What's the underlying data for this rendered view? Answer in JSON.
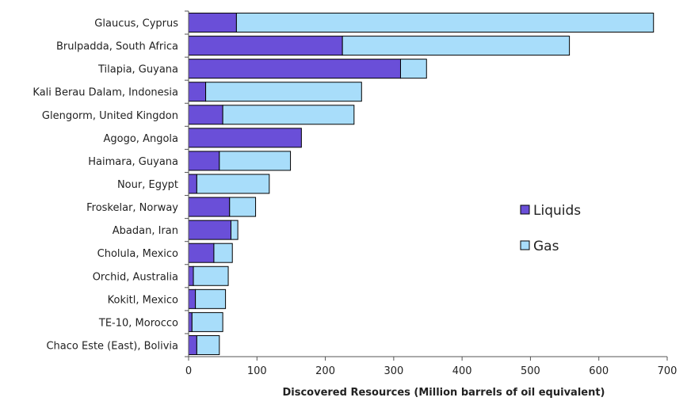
{
  "chart_data": {
    "type": "bar",
    "orientation": "horizontal",
    "stacked": true,
    "title": "",
    "xlabel": "Discovered Resources (Million barrels of oil equivalent)",
    "ylabel": "",
    "xlim": [
      0,
      700
    ],
    "xticks": [
      "0",
      "100",
      "200",
      "300",
      "400",
      "500",
      "600",
      "700"
    ],
    "grid": false,
    "legend_position": "right",
    "categories": [
      "Glaucus, Cyprus",
      "Brulpadda, South Africa",
      "Tilapia, Guyana",
      "Kali Berau Dalam, Indonesia",
      "Glengorm, United Kingdon",
      "Agogo, Angola",
      "Haimara, Guyana",
      "Nour, Egypt",
      "Froskelar, Norway",
      "Abadan, Iran",
      "Cholula, Mexico",
      "Orchid, Australia",
      "Kokitl, Mexico",
      "TE-10, Morocco",
      "Chaco Este (East), Bolivia"
    ],
    "series": [
      {
        "name": "Liquids",
        "color": "#6a4fd8",
        "values": [
          70,
          225,
          310,
          25,
          50,
          165,
          45,
          12,
          60,
          62,
          37,
          7,
          10,
          5,
          12
        ]
      },
      {
        "name": "Gas",
        "color": "#a8ddfa",
        "values": [
          610,
          332,
          38,
          228,
          192,
          0,
          104,
          106,
          38,
          10,
          27,
          51,
          44,
          45,
          33
        ]
      }
    ]
  }
}
